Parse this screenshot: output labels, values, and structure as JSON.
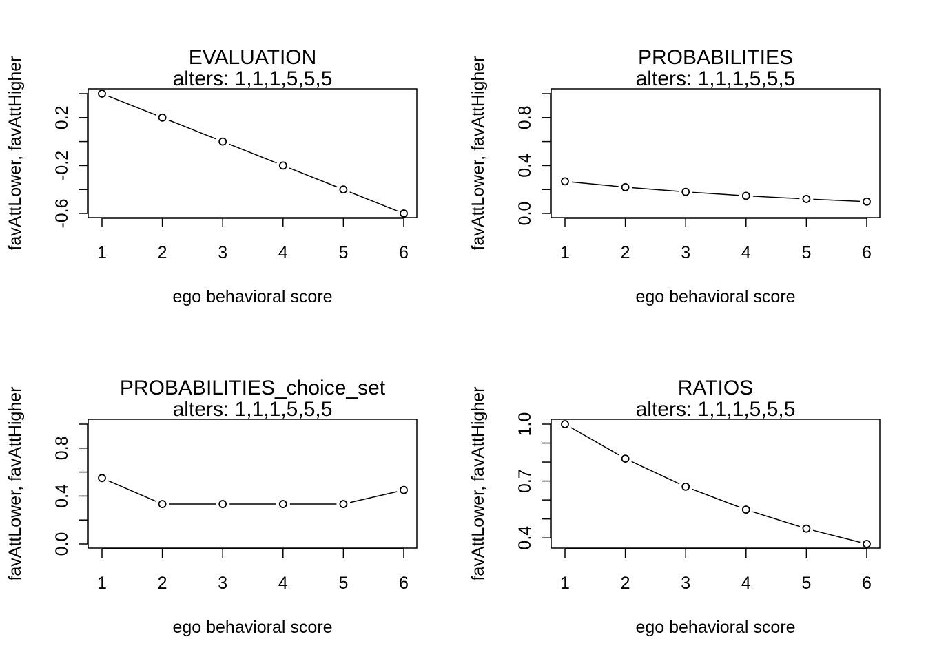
{
  "chart_data": [
    {
      "type": "line",
      "title": "EVALUATION",
      "subtitle": "alters: 1,1,1,5,5,5",
      "xlabel": "ego behavioral score",
      "ylabel": "favAttLower, favAttHigher",
      "x": [
        1,
        2,
        3,
        4,
        5,
        6
      ],
      "y": [
        0.4,
        0.2,
        0.0,
        -0.2,
        -0.4,
        -0.6
      ],
      "xlim": [
        1,
        6
      ],
      "ylim": [
        -0.6,
        0.4
      ],
      "xticks": [
        1,
        2,
        3,
        4,
        5,
        6
      ],
      "yticks": [
        -0.6,
        -0.4,
        -0.2,
        0.0,
        0.2,
        0.4
      ],
      "ytick_labels": [
        "-0.6",
        "",
        "-0.2",
        "",
        "0.2",
        ""
      ],
      "grid": false
    },
    {
      "type": "line",
      "title": "PROBABILITIES",
      "subtitle": "alters: 1,1,1,5,5,5",
      "xlabel": "ego behavioral score",
      "ylabel": "favAttLower, favAttHigher",
      "x": [
        1,
        2,
        3,
        4,
        5,
        6
      ],
      "y": [
        0.268,
        0.219,
        0.18,
        0.147,
        0.121,
        0.099
      ],
      "xlim": [
        1,
        6
      ],
      "ylim": [
        0,
        1
      ],
      "xticks": [
        1,
        2,
        3,
        4,
        5,
        6
      ],
      "yticks": [
        0.0,
        0.2,
        0.4,
        0.6,
        0.8,
        1.0
      ],
      "ytick_labels": [
        "0.0",
        "",
        "0.4",
        "",
        "0.8",
        ""
      ],
      "grid": false
    },
    {
      "type": "line",
      "title": "PROBABILITIES_choice_set",
      "subtitle": "alters: 1,1,1,5,5,5",
      "xlabel": "ego behavioral score",
      "ylabel": "favAttLower, favAttHigher",
      "x": [
        1,
        2,
        3,
        4,
        5,
        6
      ],
      "y": [
        0.55,
        0.333,
        0.333,
        0.333,
        0.333,
        0.45
      ],
      "xlim": [
        1,
        6
      ],
      "ylim": [
        0,
        1
      ],
      "xticks": [
        1,
        2,
        3,
        4,
        5,
        6
      ],
      "yticks": [
        0.0,
        0.2,
        0.4,
        0.6,
        0.8,
        1.0
      ],
      "ytick_labels": [
        "0.0",
        "",
        "0.4",
        "",
        "0.8",
        ""
      ],
      "grid": false
    },
    {
      "type": "line",
      "title": "RATIOS",
      "subtitle": "alters: 1,1,1,5,5,5",
      "xlabel": "ego behavioral score",
      "ylabel": "favAttLower, favAttHigher",
      "x": [
        1,
        2,
        3,
        4,
        5,
        6
      ],
      "y": [
        1.0,
        0.818,
        0.67,
        0.549,
        0.449,
        0.368
      ],
      "xlim": [
        1,
        6
      ],
      "ylim": [
        0.368,
        1.0
      ],
      "xticks": [
        1,
        2,
        3,
        4,
        5,
        6
      ],
      "yticks": [
        0.4,
        0.5,
        0.6,
        0.7,
        0.8,
        0.9,
        1.0
      ],
      "ytick_labels": [
        "0.4",
        "",
        "",
        "0.7",
        "",
        "",
        "1.0"
      ],
      "grid": false
    }
  ]
}
